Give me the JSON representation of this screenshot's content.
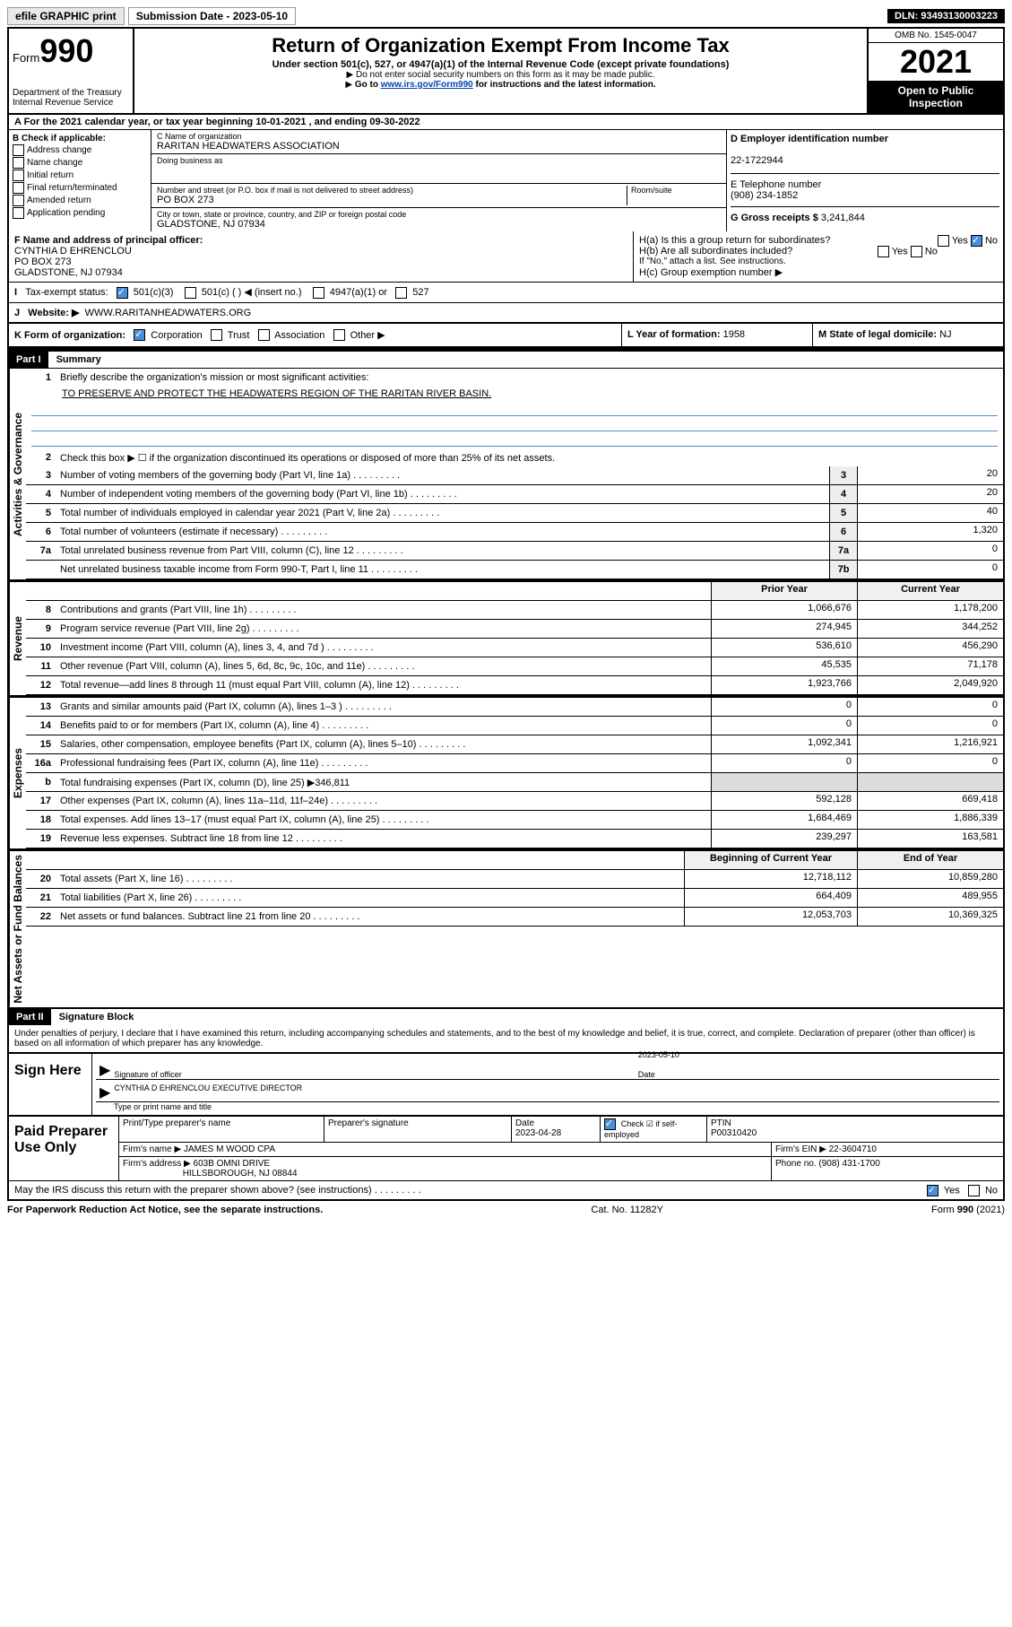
{
  "topbar": {
    "efile": "efile GRAPHIC print",
    "submission_label": "Submission Date - 2023-05-10",
    "dln": "DLN: 93493130003223"
  },
  "header": {
    "form_prefix": "Form",
    "form_number": "990",
    "dept": "Department of the Treasury",
    "irs": "Internal Revenue Service",
    "title": "Return of Organization Exempt From Income Tax",
    "subtitle": "Under section 501(c), 527, or 4947(a)(1) of the Internal Revenue Code (except private foundations)",
    "note1": "Do not enter social security numbers on this form as it may be made public.",
    "note2_pre": "Go to ",
    "note2_link": "www.irs.gov/Form990",
    "note2_post": " for instructions and the latest information.",
    "omb": "OMB No. 1545-0047",
    "taxyear": "2021",
    "open": "Open to Public Inspection"
  },
  "section_a": {
    "text_pre": "A For the 2021 calendar year, or tax year beginning ",
    "begin": "10-01-2021",
    "mid": " , and ending ",
    "end": "09-30-2022"
  },
  "col_b": {
    "header": "B Check if applicable:",
    "items": [
      "Address change",
      "Name change",
      "Initial return",
      "Final return/terminated",
      "Amended return",
      "Application pending"
    ]
  },
  "c": {
    "name_lbl": "C Name of organization",
    "name": "RARITAN HEADWATERS ASSOCIATION",
    "dba_lbl": "Doing business as",
    "addr_lbl": "Number and street (or P.O. box if mail is not delivered to street address)",
    "room_lbl": "Room/suite",
    "addr": "PO BOX 273",
    "city_lbl": "City or town, state or province, country, and ZIP or foreign postal code",
    "city": "GLADSTONE, NJ  07934"
  },
  "d": {
    "lbl": "D Employer identification number",
    "val": "22-1722944"
  },
  "e": {
    "lbl": "E Telephone number",
    "val": "(908) 234-1852"
  },
  "g": {
    "lbl": "G Gross receipts $",
    "val": "3,241,844"
  },
  "f": {
    "lbl": "F Name and address of principal officer:",
    "name": "CYNTHIA D EHRENCLOU",
    "addr1": "PO BOX 273",
    "addr2": "GLADSTONE, NJ  07934"
  },
  "h": {
    "ha": "H(a)  Is this a group return for subordinates?",
    "hb": "H(b)  Are all subordinates included?",
    "hb_note": "If \"No,\" attach a list. See instructions.",
    "hc": "H(c)  Group exemption number ▶",
    "yes": "Yes",
    "no": "No"
  },
  "i": {
    "lbl": "Tax-exempt status:",
    "opts": [
      "501(c)(3)",
      "501(c) (  ) ◀ (insert no.)",
      "4947(a)(1) or",
      "527"
    ]
  },
  "j": {
    "lbl": "Website: ▶",
    "val": "WWW.RARITANHEADWATERS.ORG"
  },
  "k": {
    "lbl": "K Form of organization:",
    "opts": [
      "Corporation",
      "Trust",
      "Association",
      "Other ▶"
    ]
  },
  "l": {
    "lbl": "L Year of formation:",
    "val": "1958"
  },
  "m": {
    "lbl": "M State of legal domicile:",
    "val": "NJ"
  },
  "part1": {
    "label": "Part I",
    "title": "Summary",
    "line1_lbl": "Briefly describe the organization's mission or most significant activities:",
    "line1_val": "TO PRESERVE AND PROTECT THE HEADWATERS REGION OF THE RARITAN RIVER BASIN.",
    "line2": "Check this box ▶ ☐  if the organization discontinued its operations or disposed of more than 25% of its net assets.",
    "vtabs": {
      "gov": "Activities & Governance",
      "rev": "Revenue",
      "exp": "Expenses",
      "net": "Net Assets or Fund Balances"
    },
    "gov_rows": [
      {
        "n": "3",
        "t": "Number of voting members of the governing body (Part VI, line 1a)",
        "box": "3",
        "v": "20"
      },
      {
        "n": "4",
        "t": "Number of independent voting members of the governing body (Part VI, line 1b)",
        "box": "4",
        "v": "20"
      },
      {
        "n": "5",
        "t": "Total number of individuals employed in calendar year 2021 (Part V, line 2a)",
        "box": "5",
        "v": "40"
      },
      {
        "n": "6",
        "t": "Total number of volunteers (estimate if necessary)",
        "box": "6",
        "v": "1,320"
      },
      {
        "n": "7a",
        "t": "Total unrelated business revenue from Part VIII, column (C), line 12",
        "box": "7a",
        "v": "0"
      },
      {
        "n": "",
        "t": "Net unrelated business taxable income from Form 990-T, Part I, line 11",
        "box": "7b",
        "v": "0"
      }
    ],
    "col_hdr_prior": "Prior Year",
    "col_hdr_current": "Current Year",
    "rev_rows": [
      {
        "n": "8",
        "t": "Contributions and grants (Part VIII, line 1h)",
        "p": "1,066,676",
        "c": "1,178,200"
      },
      {
        "n": "9",
        "t": "Program service revenue (Part VIII, line 2g)",
        "p": "274,945",
        "c": "344,252"
      },
      {
        "n": "10",
        "t": "Investment income (Part VIII, column (A), lines 3, 4, and 7d )",
        "p": "536,610",
        "c": "456,290"
      },
      {
        "n": "11",
        "t": "Other revenue (Part VIII, column (A), lines 5, 6d, 8c, 9c, 10c, and 11e)",
        "p": "45,535",
        "c": "71,178"
      },
      {
        "n": "12",
        "t": "Total revenue—add lines 8 through 11 (must equal Part VIII, column (A), line 12)",
        "p": "1,923,766",
        "c": "2,049,920"
      }
    ],
    "exp_rows": [
      {
        "n": "13",
        "t": "Grants and similar amounts paid (Part IX, column (A), lines 1–3 )",
        "p": "0",
        "c": "0"
      },
      {
        "n": "14",
        "t": "Benefits paid to or for members (Part IX, column (A), line 4)",
        "p": "0",
        "c": "0"
      },
      {
        "n": "15",
        "t": "Salaries, other compensation, employee benefits (Part IX, column (A), lines 5–10)",
        "p": "1,092,341",
        "c": "1,216,921"
      },
      {
        "n": "16a",
        "t": "Professional fundraising fees (Part IX, column (A), line 11e)",
        "p": "0",
        "c": "0"
      }
    ],
    "exp_16b": {
      "n": "b",
      "t": "Total fundraising expenses (Part IX, column (D), line 25) ▶346,811"
    },
    "exp_rows2": [
      {
        "n": "17",
        "t": "Other expenses (Part IX, column (A), lines 11a–11d, 11f–24e)",
        "p": "592,128",
        "c": "669,418"
      },
      {
        "n": "18",
        "t": "Total expenses. Add lines 13–17 (must equal Part IX, column (A), line 25)",
        "p": "1,684,469",
        "c": "1,886,339"
      },
      {
        "n": "19",
        "t": "Revenue less expenses. Subtract line 18 from line 12",
        "p": "239,297",
        "c": "163,581"
      }
    ],
    "net_hdr_begin": "Beginning of Current Year",
    "net_hdr_end": "End of Year",
    "net_rows": [
      {
        "n": "20",
        "t": "Total assets (Part X, line 16)",
        "p": "12,718,112",
        "c": "10,859,280"
      },
      {
        "n": "21",
        "t": "Total liabilities (Part X, line 26)",
        "p": "664,409",
        "c": "489,955"
      },
      {
        "n": "22",
        "t": "Net assets or fund balances. Subtract line 21 from line 20",
        "p": "12,053,703",
        "c": "10,369,325"
      }
    ]
  },
  "part2": {
    "label": "Part II",
    "title": "Signature Block",
    "declare": "Under penalties of perjury, I declare that I have examined this return, including accompanying schedules and statements, and to the best of my knowledge and belief, it is true, correct, and complete. Declaration of preparer (other than officer) is based on all information of which preparer has any knowledge.",
    "sign_here": "Sign Here",
    "sig_officer": "Signature of officer",
    "sig_date_lbl": "Date",
    "sig_date": "2023-05-10",
    "sig_name": "CYNTHIA D EHRENCLOU  EXECUTIVE DIRECTOR",
    "sig_name_lbl": "Type or print name and title",
    "paid": "Paid Preparer Use Only",
    "prep_name_lbl": "Print/Type preparer's name",
    "prep_sig_lbl": "Preparer's signature",
    "prep_date_lbl": "Date",
    "prep_date": "2023-04-28",
    "prep_check_lbl": "Check ☑ if self-employed",
    "ptin_lbl": "PTIN",
    "ptin": "P00310420",
    "firm_name_lbl": "Firm's name    ▶",
    "firm_name": "JAMES M WOOD CPA",
    "firm_ein_lbl": "Firm's EIN ▶",
    "firm_ein": "22-3604710",
    "firm_addr_lbl": "Firm's address ▶",
    "firm_addr1": "603B OMNI DRIVE",
    "firm_addr2": "HILLSBOROUGH, NJ  08844",
    "phone_lbl": "Phone no.",
    "phone": "(908) 431-1700",
    "discuss": "May the IRS discuss this return with the preparer shown above? (see instructions)",
    "yes": "Yes",
    "no": "No"
  },
  "footer": {
    "left": "For Paperwork Reduction Act Notice, see the separate instructions.",
    "mid": "Cat. No. 11282Y",
    "right": "Form 990 (2021)"
  }
}
